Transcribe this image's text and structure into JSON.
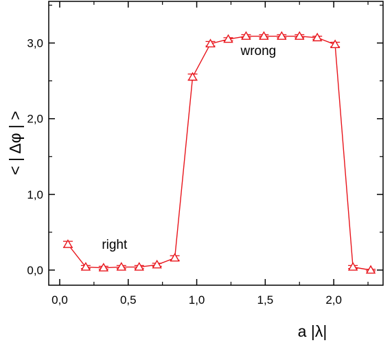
{
  "chart_data": {
    "type": "scatter",
    "title": "",
    "xlabel": "a |λ|",
    "ylabel": "< | Δφ | >",
    "xlim": [
      -0.08,
      2.36
    ],
    "ylim": [
      -0.2,
      3.55
    ],
    "grid": false,
    "legend": "none",
    "x_ticks": [
      {
        "value": 0.0,
        "label": "0,0"
      },
      {
        "value": 0.5,
        "label": "0,5"
      },
      {
        "value": 1.0,
        "label": "1,0"
      },
      {
        "value": 1.5,
        "label": "1,5"
      },
      {
        "value": 2.0,
        "label": "2,0"
      }
    ],
    "y_ticks": [
      {
        "value": 0.0,
        "label": "0,0"
      },
      {
        "value": 1.0,
        "label": "1,0"
      },
      {
        "value": 2.0,
        "label": "2,0"
      },
      {
        "value": 3.0,
        "label": "3,0"
      }
    ],
    "series": [
      {
        "marker": "triangle-open",
        "color": "#e8141b",
        "points": [
          {
            "x": 0.06,
            "y": 0.34,
            "err": 0.04
          },
          {
            "x": 0.19,
            "y": 0.04,
            "err": 0.02
          },
          {
            "x": 0.32,
            "y": 0.03,
            "err": 0.02
          },
          {
            "x": 0.45,
            "y": 0.04,
            "err": 0.02
          },
          {
            "x": 0.58,
            "y": 0.04,
            "err": 0.02
          },
          {
            "x": 0.71,
            "y": 0.07,
            "err": 0.02
          },
          {
            "x": 0.84,
            "y": 0.16,
            "err": 0.03
          },
          {
            "x": 0.97,
            "y": 2.55,
            "err": 0.04
          },
          {
            "x": 1.1,
            "y": 2.99,
            "err": 0.03
          },
          {
            "x": 1.23,
            "y": 3.05,
            "err": 0.02
          },
          {
            "x": 1.36,
            "y": 3.09,
            "err": 0.02
          },
          {
            "x": 1.49,
            "y": 3.09,
            "err": 0.02
          },
          {
            "x": 1.62,
            "y": 3.09,
            "err": 0.02
          },
          {
            "x": 1.75,
            "y": 3.09,
            "err": 0.02
          },
          {
            "x": 1.88,
            "y": 3.07,
            "err": 0.02
          },
          {
            "x": 2.01,
            "y": 2.98,
            "err": 0.03
          },
          {
            "x": 2.14,
            "y": 0.04,
            "err": 0.02
          },
          {
            "x": 2.27,
            "y": 0.0,
            "err": 0.01
          }
        ]
      }
    ],
    "annotations": [
      {
        "text": "right",
        "x": 0.4,
        "y": 0.28
      },
      {
        "text": "wrong",
        "x": 1.45,
        "y": 2.84
      }
    ]
  }
}
